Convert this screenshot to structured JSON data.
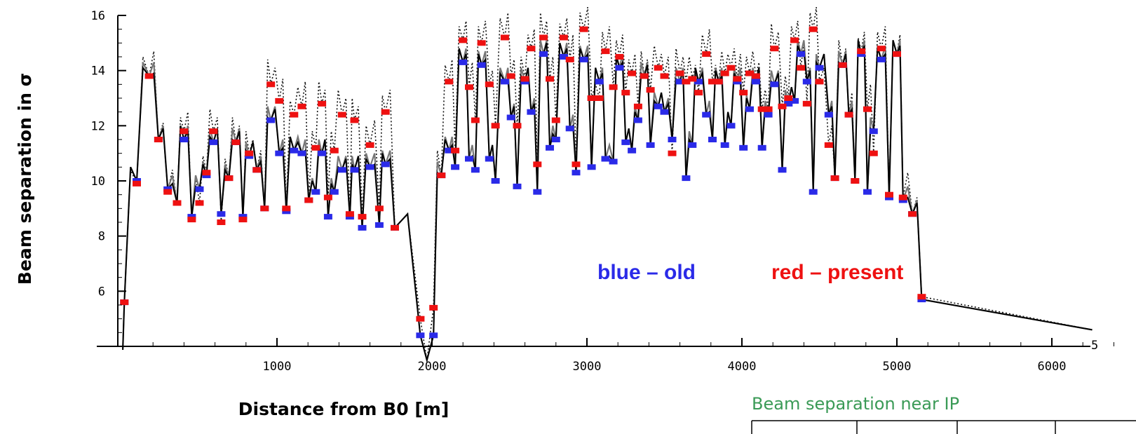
{
  "chart_data": {
    "type": "line",
    "title": "",
    "xlabel": "Distance from B0  [m]",
    "ylabel": "Beam separation in σ",
    "xlim": [
      0,
      6500
    ],
    "ylim": [
      4,
      16
    ],
    "x_ticks": [
      1000,
      2000,
      3000,
      4000,
      5000,
      6000
    ],
    "y_ticks": [
      6,
      8,
      10,
      12,
      14,
      16
    ],
    "x_tick_labels": [
      "1000",
      "2000",
      "3000",
      "4000",
      "5000",
      "6000"
    ],
    "y_tick_labels": [
      "6",
      "8",
      "10",
      "12",
      "14",
      "16"
    ],
    "legend": {
      "placement": "inside-bottom-center",
      "entries": [
        {
          "label": "blue – old",
          "color": "#2a2ae8"
        },
        {
          "label": "red – present",
          "color": "#ee1111"
        }
      ]
    },
    "annotations": {
      "right_edge_tick": "5",
      "note": "Beam separation near IP"
    },
    "colors": {
      "old": "#2a2ae8",
      "present": "#ee1111",
      "note": "#3a9a56"
    },
    "series": [
      {
        "name": "old",
        "color": "#2a2ae8",
        "points": [
          [
            15,
            5.6
          ],
          [
            95,
            10.0
          ],
          [
            175,
            13.8
          ],
          [
            235,
            11.5
          ],
          [
            295,
            9.7
          ],
          [
            355,
            9.2
          ],
          [
            400,
            11.5
          ],
          [
            450,
            8.7
          ],
          [
            500,
            9.7
          ],
          [
            545,
            10.2
          ],
          [
            590,
            11.4
          ],
          [
            640,
            8.8
          ],
          [
            690,
            10.1
          ],
          [
            735,
            11.4
          ],
          [
            780,
            8.7
          ],
          [
            820,
            10.9
          ],
          [
            870,
            10.4
          ],
          [
            920,
            9.0
          ],
          [
            960,
            12.2
          ],
          [
            1015,
            11.0
          ],
          [
            1060,
            8.9
          ],
          [
            1110,
            11.1
          ],
          [
            1160,
            11.0
          ],
          [
            1205,
            9.3
          ],
          [
            1250,
            9.6
          ],
          [
            1290,
            11.0
          ],
          [
            1330,
            8.7
          ],
          [
            1370,
            9.6
          ],
          [
            1420,
            10.4
          ],
          [
            1470,
            8.7
          ],
          [
            1500,
            10.4
          ],
          [
            1550,
            8.3
          ],
          [
            1600,
            10.5
          ],
          [
            1660,
            8.4
          ],
          [
            1700,
            10.6
          ],
          [
            1760,
            8.3
          ],
          [
            1925,
            4.4
          ],
          [
            2010,
            4.4
          ],
          [
            2060,
            10.2
          ],
          [
            2110,
            11.1
          ],
          [
            2150,
            10.5
          ],
          [
            2200,
            14.3
          ],
          [
            2240,
            10.8
          ],
          [
            2280,
            10.4
          ],
          [
            2320,
            14.2
          ],
          [
            2370,
            10.8
          ],
          [
            2410,
            10.0
          ],
          [
            2470,
            13.6
          ],
          [
            2510,
            12.3
          ],
          [
            2550,
            9.8
          ],
          [
            2600,
            13.6
          ],
          [
            2640,
            12.5
          ],
          [
            2680,
            9.6
          ],
          [
            2720,
            14.6
          ],
          [
            2760,
            11.2
          ],
          [
            2800,
            11.5
          ],
          [
            2850,
            14.5
          ],
          [
            2890,
            11.9
          ],
          [
            2930,
            10.3
          ],
          [
            2980,
            14.4
          ],
          [
            3030,
            10.5
          ],
          [
            3080,
            13.6
          ],
          [
            3120,
            10.8
          ],
          [
            3170,
            10.7
          ],
          [
            3210,
            14.1
          ],
          [
            3250,
            11.4
          ],
          [
            3290,
            11.1
          ],
          [
            3330,
            12.2
          ],
          [
            3370,
            13.8
          ],
          [
            3410,
            11.3
          ],
          [
            3460,
            12.7
          ],
          [
            3500,
            12.5
          ],
          [
            3550,
            11.5
          ],
          [
            3600,
            13.6
          ],
          [
            3640,
            10.1
          ],
          [
            3680,
            11.3
          ],
          [
            3720,
            13.6
          ],
          [
            3770,
            12.4
          ],
          [
            3810,
            11.5
          ],
          [
            3850,
            13.6
          ],
          [
            3890,
            11.3
          ],
          [
            3930,
            12.0
          ],
          [
            3970,
            13.6
          ],
          [
            4010,
            11.2
          ],
          [
            4050,
            12.6
          ],
          [
            4090,
            13.6
          ],
          [
            4130,
            11.2
          ],
          [
            4170,
            12.4
          ],
          [
            4210,
            13.5
          ],
          [
            4260,
            10.4
          ],
          [
            4300,
            12.8
          ],
          [
            4340,
            12.9
          ],
          [
            4380,
            14.6
          ],
          [
            4420,
            13.6
          ],
          [
            4460,
            9.6
          ],
          [
            4500,
            14.1
          ],
          [
            4560,
            12.4
          ],
          [
            4600,
            10.1
          ],
          [
            4650,
            14.2
          ],
          [
            4690,
            12.4
          ],
          [
            4730,
            10.0
          ],
          [
            4770,
            14.6
          ],
          [
            4810,
            9.6
          ],
          [
            4850,
            11.8
          ],
          [
            4900,
            14.4
          ],
          [
            4950,
            9.4
          ],
          [
            5000,
            14.6
          ],
          [
            5040,
            9.3
          ],
          [
            5100,
            8.8
          ],
          [
            5160,
            5.7
          ]
        ]
      },
      {
        "name": "present",
        "color": "#ee1111",
        "points": [
          [
            15,
            5.6
          ],
          [
            95,
            9.9
          ],
          [
            175,
            13.8
          ],
          [
            235,
            11.5
          ],
          [
            295,
            9.6
          ],
          [
            355,
            9.2
          ],
          [
            400,
            11.8
          ],
          [
            450,
            8.6
          ],
          [
            500,
            9.2
          ],
          [
            545,
            10.3
          ],
          [
            590,
            11.8
          ],
          [
            640,
            8.5
          ],
          [
            690,
            10.1
          ],
          [
            735,
            11.4
          ],
          [
            780,
            8.6
          ],
          [
            820,
            11.0
          ],
          [
            870,
            10.4
          ],
          [
            920,
            9.0
          ],
          [
            960,
            13.5
          ],
          [
            1015,
            12.9
          ],
          [
            1060,
            9.0
          ],
          [
            1110,
            12.4
          ],
          [
            1160,
            12.7
          ],
          [
            1205,
            9.3
          ],
          [
            1250,
            11.2
          ],
          [
            1290,
            12.8
          ],
          [
            1330,
            9.4
          ],
          [
            1370,
            11.1
          ],
          [
            1420,
            12.4
          ],
          [
            1470,
            8.8
          ],
          [
            1500,
            12.2
          ],
          [
            1550,
            8.7
          ],
          [
            1600,
            11.3
          ],
          [
            1660,
            9.0
          ],
          [
            1700,
            12.5
          ],
          [
            1760,
            8.3
          ],
          [
            1925,
            5.0
          ],
          [
            2010,
            5.4
          ],
          [
            2060,
            10.2
          ],
          [
            2110,
            13.6
          ],
          [
            2150,
            11.1
          ],
          [
            2200,
            15.1
          ],
          [
            2240,
            13.4
          ],
          [
            2280,
            12.2
          ],
          [
            2320,
            15.0
          ],
          [
            2370,
            13.5
          ],
          [
            2410,
            12.0
          ],
          [
            2470,
            15.2
          ],
          [
            2510,
            13.8
          ],
          [
            2550,
            12.0
          ],
          [
            2600,
            13.7
          ],
          [
            2640,
            14.8
          ],
          [
            2680,
            10.6
          ],
          [
            2720,
            15.2
          ],
          [
            2760,
            13.7
          ],
          [
            2800,
            12.2
          ],
          [
            2850,
            15.2
          ],
          [
            2890,
            14.4
          ],
          [
            2930,
            10.6
          ],
          [
            2980,
            15.5
          ],
          [
            3030,
            13.0
          ],
          [
            3080,
            13.0
          ],
          [
            3120,
            14.7
          ],
          [
            3170,
            13.4
          ],
          [
            3210,
            14.5
          ],
          [
            3250,
            13.2
          ],
          [
            3290,
            13.9
          ],
          [
            3330,
            12.7
          ],
          [
            3370,
            13.8
          ],
          [
            3410,
            13.3
          ],
          [
            3460,
            14.1
          ],
          [
            3500,
            13.8
          ],
          [
            3550,
            11.0
          ],
          [
            3600,
            13.9
          ],
          [
            3640,
            13.6
          ],
          [
            3680,
            13.7
          ],
          [
            3720,
            13.2
          ],
          [
            3770,
            14.6
          ],
          [
            3810,
            13.6
          ],
          [
            3850,
            13.6
          ],
          [
            3890,
            13.9
          ],
          [
            3930,
            14.1
          ],
          [
            3970,
            13.7
          ],
          [
            4010,
            13.2
          ],
          [
            4050,
            13.9
          ],
          [
            4090,
            13.8
          ],
          [
            4130,
            12.6
          ],
          [
            4170,
            12.6
          ],
          [
            4210,
            14.8
          ],
          [
            4260,
            12.7
          ],
          [
            4300,
            13.0
          ],
          [
            4340,
            15.1
          ],
          [
            4380,
            14.1
          ],
          [
            4420,
            12.8
          ],
          [
            4460,
            15.5
          ],
          [
            4500,
            13.6
          ],
          [
            4560,
            11.3
          ],
          [
            4600,
            10.1
          ],
          [
            4650,
            14.2
          ],
          [
            4690,
            12.4
          ],
          [
            4730,
            10.0
          ],
          [
            4770,
            14.7
          ],
          [
            4810,
            12.6
          ],
          [
            4850,
            11.0
          ],
          [
            4900,
            14.8
          ],
          [
            4950,
            9.5
          ],
          [
            5000,
            14.6
          ],
          [
            5040,
            9.4
          ],
          [
            5100,
            8.8
          ],
          [
            5160,
            5.8
          ]
        ]
      }
    ]
  }
}
